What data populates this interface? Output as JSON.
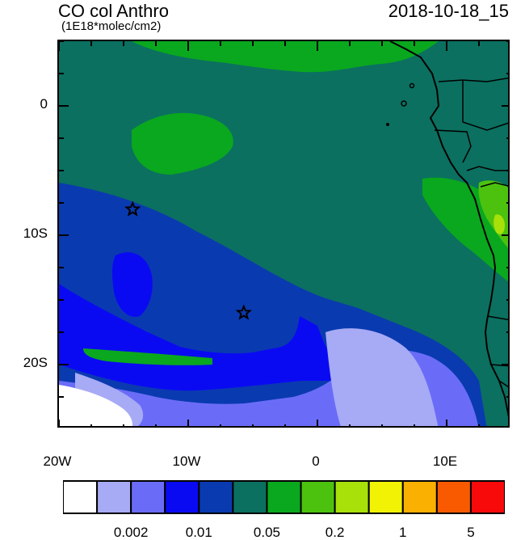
{
  "header": {
    "title": "CO col Anthro",
    "units": "(1E18*molec/cm2)",
    "valid_time": "2018-10-18_15"
  },
  "map": {
    "lon_range": [
      -20,
      15
    ],
    "lat_range": [
      -25,
      5
    ],
    "lat_ticks": [
      {
        "value": 0,
        "label": "0"
      },
      {
        "value": -10,
        "label": "10S"
      },
      {
        "value": -20,
        "label": "20S"
      }
    ],
    "lon_ticks": [
      {
        "value": -20,
        "label": "20W"
      },
      {
        "value": -10,
        "label": "10W"
      },
      {
        "value": 0,
        "label": "0"
      },
      {
        "value": 10,
        "label": "10E"
      }
    ],
    "markers": [
      {
        "name": "star-marker",
        "lon": -14.3,
        "lat": -8.0
      },
      {
        "name": "star-marker",
        "lon": -5.7,
        "lat": -16.0
      }
    ]
  },
  "colorbar": {
    "colors": [
      "#ffffff",
      "#a7aaf5",
      "#6a6cf8",
      "#0a0af2",
      "#0a3ab0",
      "#0b7060",
      "#0aa81e",
      "#4cc20f",
      "#a8e00a",
      "#f2f205",
      "#f9b000",
      "#f95a00",
      "#f90a0a"
    ],
    "labels": [
      {
        "text": "0.002",
        "index": 2
      },
      {
        "text": "0.01",
        "index": 4
      },
      {
        "text": "0.05",
        "index": 6
      },
      {
        "text": "0.2",
        "index": 8
      },
      {
        "text": "1",
        "index": 10
      },
      {
        "text": "5",
        "index": 12
      }
    ]
  }
}
